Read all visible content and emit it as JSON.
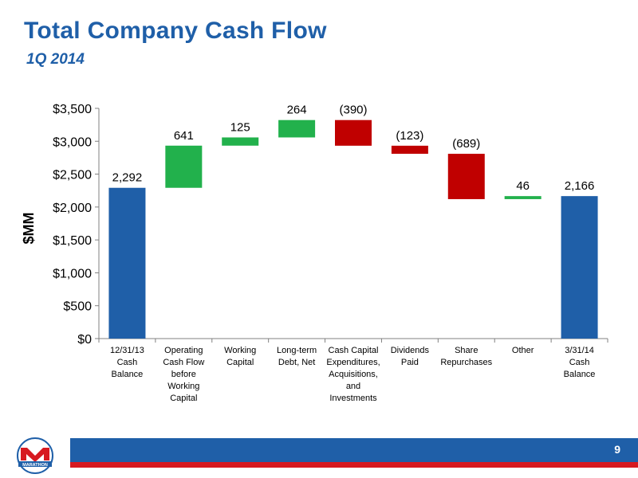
{
  "header": {
    "title": "Total Company Cash Flow",
    "subtitle": "1Q 2014"
  },
  "footer": {
    "page_number": "9",
    "logo_text": "MARATHON"
  },
  "colors": {
    "title": "#1f5fa8",
    "total_bar": "#1f5fa8",
    "increase_bar": "#22b14c",
    "decrease_bar": "#c00000",
    "footer_blue": "#1f5fa8",
    "footer_red": "#d71920"
  },
  "chart_data": {
    "type": "waterfall",
    "ylabel": "$MM",
    "ylim": [
      0,
      3500
    ],
    "yticks": [
      0,
      500,
      1000,
      1500,
      2000,
      2500,
      3000,
      3500
    ],
    "ytick_labels": [
      "$0",
      "$500",
      "$1,000",
      "$1,500",
      "$2,000",
      "$2,500",
      "$3,000",
      "$3,500"
    ],
    "categories": [
      [
        "12/31/13",
        "Cash",
        "Balance"
      ],
      [
        "Operating",
        "Cash Flow",
        "before",
        "Working",
        "Capital"
      ],
      [
        "Working",
        "Capital"
      ],
      [
        "Long-term",
        "Debt, Net"
      ],
      [
        "Cash Capital",
        "Expenditures,",
        "Acquisitions,",
        "and",
        "Investments"
      ],
      [
        "Dividends",
        "Paid"
      ],
      [
        "Share",
        "Repurchases"
      ],
      [
        "Other"
      ],
      [
        "3/31/14",
        "Cash",
        "Balance"
      ]
    ],
    "values": [
      2292,
      641,
      125,
      264,
      -390,
      -123,
      -689,
      46,
      2166
    ],
    "kinds": [
      "total",
      "increase",
      "increase",
      "increase",
      "decrease",
      "decrease",
      "decrease",
      "increase",
      "total"
    ],
    "data_labels": [
      "2,292",
      "641",
      "125",
      "264",
      "(390)",
      "(123)",
      "(689)",
      "46",
      "2,166"
    ],
    "grid": false,
    "legend": "none"
  }
}
